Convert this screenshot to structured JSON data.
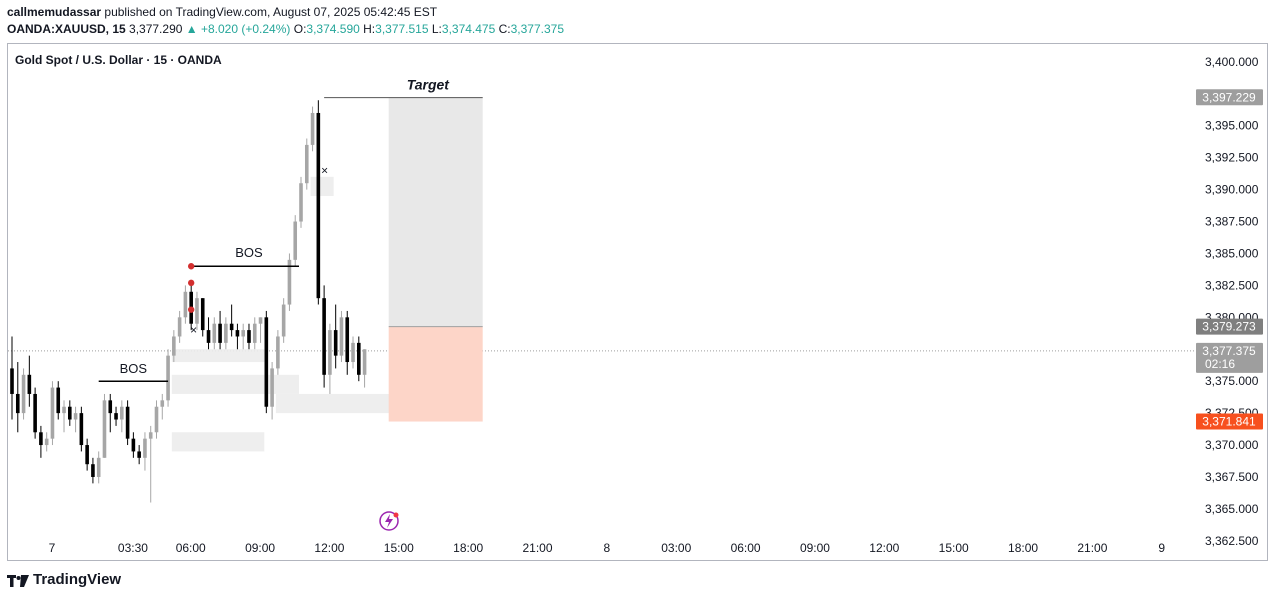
{
  "header": {
    "author": "callmemudassar",
    "published_text": "published on TradingView.com, August 07, 2025 05:42:45 EST",
    "symbol": "OANDA:XAUUSD, 15",
    "last": "3,377.290",
    "change": "+8.020 (+0.24%)",
    "o_label": "O:",
    "o_value": "3,374.590",
    "h_label": "H:",
    "h_value": "3,377.515",
    "l_label": "L:",
    "l_value": "3,374.475",
    "c_label": "C:",
    "c_value": "3,377.375"
  },
  "chart_title": "Gold Spot / U.S. Dollar · 15 · OANDA",
  "footer": {
    "brand": "TradingView"
  },
  "colors": {
    "up": "#a6a6a6",
    "down": "#000000",
    "teal": "#26a69a",
    "stop": "#f7501e",
    "target_box": "#e8e8e8",
    "stop_box": "#fdd5c8"
  },
  "chart_data": {
    "type": "candlestick",
    "ylim": [
      3361.0,
      3401.4
    ],
    "y_ticks": [
      "3,362.500",
      "3,365.000",
      "3,367.500",
      "3,370.000",
      "3,372.500",
      "3,375.000",
      "3,377.500",
      "3,380.000",
      "3,382.500",
      "3,385.000",
      "3,387.500",
      "3,390.000",
      "3,392.500",
      "3,395.000",
      "3,397.500",
      "3,400.000"
    ],
    "y_tick_values": [
      3362.5,
      3365,
      3367.5,
      3370,
      3372.5,
      3375,
      3377.5,
      3380,
      3382.5,
      3385,
      3387.5,
      3390,
      3392.5,
      3395,
      3397.5,
      3400
    ],
    "x_ticks": [
      {
        "label": "7",
        "bar": 0
      },
      {
        "label": "03:30",
        "bar": 14
      },
      {
        "label": "06:00",
        "bar": 24
      },
      {
        "label": "09:00",
        "bar": 36
      },
      {
        "label": "12:00",
        "bar": 48
      },
      {
        "label": "15:00",
        "bar": 60
      },
      {
        "label": "18:00",
        "bar": 72
      },
      {
        "label": "21:00",
        "bar": 84
      },
      {
        "label": "8",
        "bar": 96
      },
      {
        "label": "03:00",
        "bar": 108
      },
      {
        "label": "06:00",
        "bar": 120
      },
      {
        "label": "09:00",
        "bar": 132
      },
      {
        "label": "12:00",
        "bar": 144
      },
      {
        "label": "15:00",
        "bar": 156
      },
      {
        "label": "18:00",
        "bar": 168
      },
      {
        "label": "21:00",
        "bar": 180
      },
      {
        "label": "9",
        "bar": 192
      }
    ],
    "candles": [
      [
        3376.0,
        3378.5,
        3372.0,
        3374.0
      ],
      [
        3374.0,
        3376.5,
        3371.0,
        3372.5
      ],
      [
        3372.5,
        3376.0,
        3372.0,
        3375.5
      ],
      [
        3375.5,
        3377.0,
        3373.0,
        3374.0
      ],
      [
        3374.0,
        3374.5,
        3370.5,
        3371.0
      ],
      [
        3371.0,
        3371.5,
        3369.0,
        3370.0
      ],
      [
        3370.0,
        3371.0,
        3369.5,
        3370.5
      ],
      [
        3370.5,
        3375.0,
        3370.0,
        3374.5
      ],
      [
        3374.5,
        3375.0,
        3372.0,
        3372.5
      ],
      [
        3372.5,
        3373.5,
        3371.0,
        3373.0
      ],
      [
        3373.0,
        3373.5,
        3371.5,
        3372.0
      ],
      [
        3372.0,
        3373.0,
        3371.0,
        3372.5
      ],
      [
        3372.5,
        3373.0,
        3369.5,
        3370.0
      ],
      [
        3370.0,
        3370.5,
        3368.0,
        3368.5
      ],
      [
        3368.5,
        3369.0,
        3367.0,
        3367.5
      ],
      [
        3367.5,
        3369.5,
        3367.0,
        3369.0
      ],
      [
        3369.0,
        3374.0,
        3369.0,
        3373.5
      ],
      [
        3373.5,
        3374.0,
        3371.0,
        3372.5
      ],
      [
        3372.5,
        3373.0,
        3371.5,
        3372.0
      ],
      [
        3372.0,
        3373.5,
        3371.0,
        3373.0
      ],
      [
        3373.0,
        3373.5,
        3370.0,
        3370.5
      ],
      [
        3370.5,
        3371.0,
        3369.0,
        3369.5
      ],
      [
        3369.5,
        3370.0,
        3368.5,
        3369.0
      ],
      [
        3369.0,
        3371.0,
        3368.0,
        3370.5
      ],
      [
        3370.5,
        3371.5,
        3365.5,
        3371.0
      ],
      [
        3371.0,
        3373.5,
        3370.5,
        3373.0
      ],
      [
        3373.0,
        3374.0,
        3372.0,
        3373.5
      ],
      [
        3373.5,
        3377.5,
        3373.0,
        3377.0
      ],
      [
        3377.0,
        3379.0,
        3376.5,
        3378.5
      ],
      [
        3378.5,
        3380.5,
        3378.0,
        3380.0
      ],
      [
        3380.0,
        3382.5,
        3379.5,
        3382.0
      ],
      [
        3382.0,
        3382.5,
        3379.0,
        3379.5
      ],
      [
        3379.5,
        3382.0,
        3379.0,
        3381.5
      ],
      [
        3381.5,
        3381.5,
        3378.5,
        3379.0
      ],
      [
        3379.0,
        3380.0,
        3377.5,
        3378.0
      ],
      [
        3378.0,
        3380.0,
        3377.5,
        3379.5
      ],
      [
        3379.5,
        3380.5,
        3377.5,
        3378.0
      ],
      [
        3378.0,
        3380.0,
        3377.5,
        3379.5
      ],
      [
        3379.5,
        3381.0,
        3378.5,
        3379.0
      ],
      [
        3379.0,
        3379.5,
        3377.5,
        3378.5
      ],
      [
        3378.5,
        3379.5,
        3377.5,
        3379.0
      ],
      [
        3379.0,
        3379.5,
        3377.5,
        3378.0
      ],
      [
        3378.0,
        3380.0,
        3377.5,
        3379.5
      ],
      [
        3379.5,
        3380.0,
        3378.0,
        3380.0
      ],
      [
        3380.0,
        3380.5,
        3372.5,
        3373.0
      ],
      [
        3373.0,
        3376.5,
        3372.0,
        3376.0
      ],
      [
        3376.0,
        3379.0,
        3375.5,
        3378.5
      ],
      [
        3378.5,
        3381.5,
        3378.0,
        3381.0
      ],
      [
        3381.0,
        3385.0,
        3380.5,
        3384.5
      ],
      [
        3384.5,
        3388.0,
        3384.0,
        3387.5
      ],
      [
        3387.5,
        3391.0,
        3387.0,
        3390.5
      ],
      [
        3390.5,
        3394.0,
        3390.0,
        3393.5
      ],
      [
        3393.5,
        3396.5,
        3393.0,
        3396.0
      ],
      [
        3396.0,
        3397.0,
        3381.0,
        3381.5
      ],
      [
        3381.5,
        3382.5,
        3374.5,
        3375.5
      ],
      [
        3375.5,
        3379.5,
        3374.0,
        3379.0
      ],
      [
        3379.0,
        3381.0,
        3376.0,
        3377.0
      ],
      [
        3377.0,
        3380.5,
        3376.5,
        3380.0
      ],
      [
        3380.0,
        3380.5,
        3375.5,
        3376.5
      ],
      [
        3376.5,
        3378.5,
        3376.0,
        3378.0
      ],
      [
        3378.0,
        3378.5,
        3375.0,
        3375.5
      ],
      [
        3375.5,
        3377.5,
        3374.5,
        3377.5
      ]
    ],
    "annotations": [
      {
        "type": "text",
        "text": "BOS",
        "level": 3375.0
      },
      {
        "type": "text",
        "text": "BOS",
        "level": 3384.0
      },
      {
        "type": "text",
        "text": "Target",
        "level": 3397.2
      },
      {
        "type": "marker",
        "text": "×",
        "level": 3379.0
      },
      {
        "type": "marker",
        "text": "×",
        "level": 3391.5
      }
    ],
    "price_labels": [
      {
        "text": "3,397.229",
        "value": 3397.229,
        "color": "#9e9e9e"
      },
      {
        "text": "3,379.273",
        "value": 3379.273,
        "color": "#7f7f7f"
      },
      {
        "text": "3,377.375",
        "value": 3377.375,
        "color": "#9e9e9e",
        "countdown": "02:16"
      },
      {
        "text": "3,371.841",
        "value": 3371.841,
        "color": "#f7501e"
      }
    ],
    "position": {
      "entry": 3379.273,
      "target": 3397.229,
      "stop": 3371.841
    }
  }
}
